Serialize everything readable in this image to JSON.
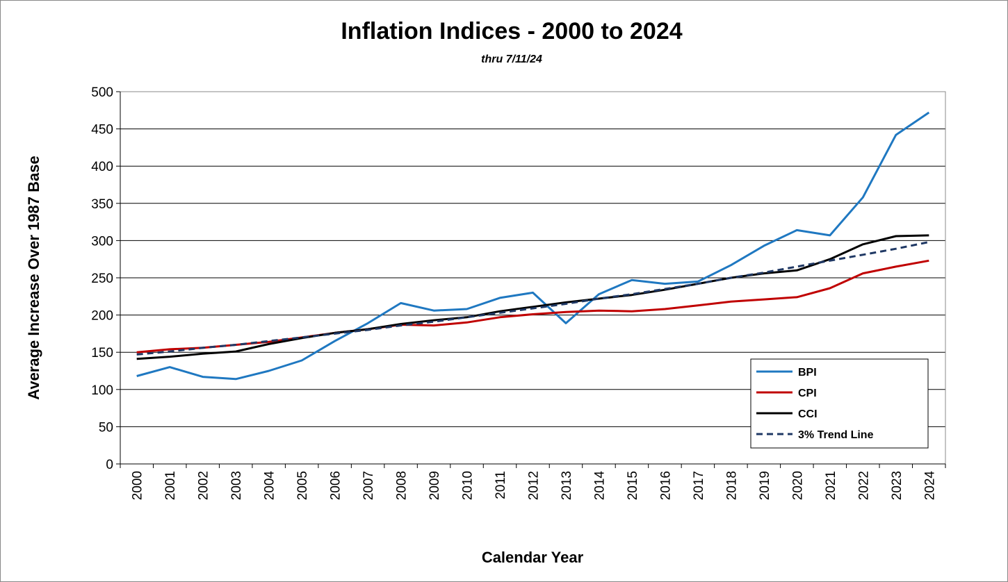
{
  "chart_data": {
    "type": "line",
    "title": "Inflation Indices - 2000 to 2024",
    "subtitle": "thru 7/11/24",
    "x_label": "Calendar Year",
    "y_label": "Average Increase Over 1987 Base",
    "categories": [
      "2000",
      "2001",
      "2002",
      "2003",
      "2004",
      "2005",
      "2006",
      "2007",
      "2008",
      "2009",
      "2010",
      "2011",
      "2012",
      "2013",
      "2014",
      "2015",
      "2016",
      "2017",
      "2018",
      "2019",
      "2020",
      "2021",
      "2022",
      "2023",
      "2024"
    ],
    "series": [
      {
        "name": "BPI",
        "color": "#1f78c1",
        "dashed": false,
        "values": [
          118,
          130,
          117,
          114,
          125,
          139,
          165,
          189,
          216,
          206,
          208,
          223,
          230,
          189,
          228,
          247,
          242,
          245,
          267,
          293,
          314,
          307,
          358,
          442,
          472
        ]
      },
      {
        "name": "CPI",
        "color": "#c00000",
        "dashed": false,
        "values": [
          150,
          154,
          156,
          160,
          164,
          170,
          176,
          181,
          187,
          186,
          190,
          197,
          201,
          204,
          206,
          205,
          208,
          213,
          218,
          221,
          224,
          236,
          256,
          265,
          273
        ]
      },
      {
        "name": "CCI",
        "color": "#000000",
        "dashed": false,
        "values": [
          141,
          144,
          148,
          151,
          161,
          169,
          176,
          181,
          188,
          193,
          197,
          205,
          211,
          217,
          222,
          227,
          234,
          242,
          250,
          256,
          260,
          275,
          295,
          306,
          307
        ]
      },
      {
        "name": "3% Trend Line",
        "color": "#1f3864",
        "dashed": true,
        "values": [
          147,
          151,
          156,
          160,
          165,
          170,
          175,
          180,
          186,
          191,
          197,
          203,
          209,
          215,
          222,
          228,
          235,
          242,
          250,
          257,
          265,
          273,
          281,
          289,
          298
        ]
      }
    ],
    "ylim": [
      0,
      500
    ],
    "yticks": [
      0,
      50,
      100,
      150,
      200,
      250,
      300,
      350,
      400,
      450,
      500
    ],
    "grid": true,
    "legend": "lower right"
  }
}
